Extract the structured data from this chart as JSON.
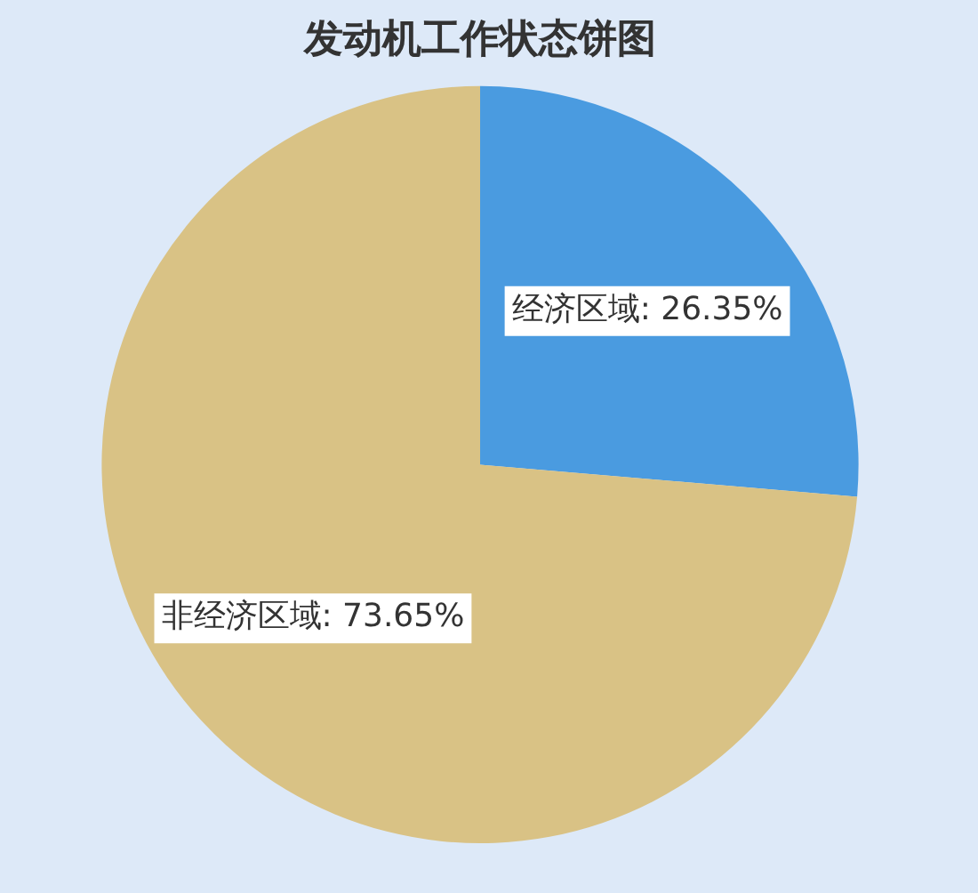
{
  "chart_data": {
    "type": "pie",
    "title": "发动机工作状态饼图",
    "categories": [
      "经济区域",
      "非经济区域"
    ],
    "values": [
      26.35,
      73.65
    ],
    "value_labels": [
      "26.35%",
      "73.65%"
    ],
    "colors": [
      "#4a9be0",
      "#d9c285"
    ],
    "legend": false
  }
}
